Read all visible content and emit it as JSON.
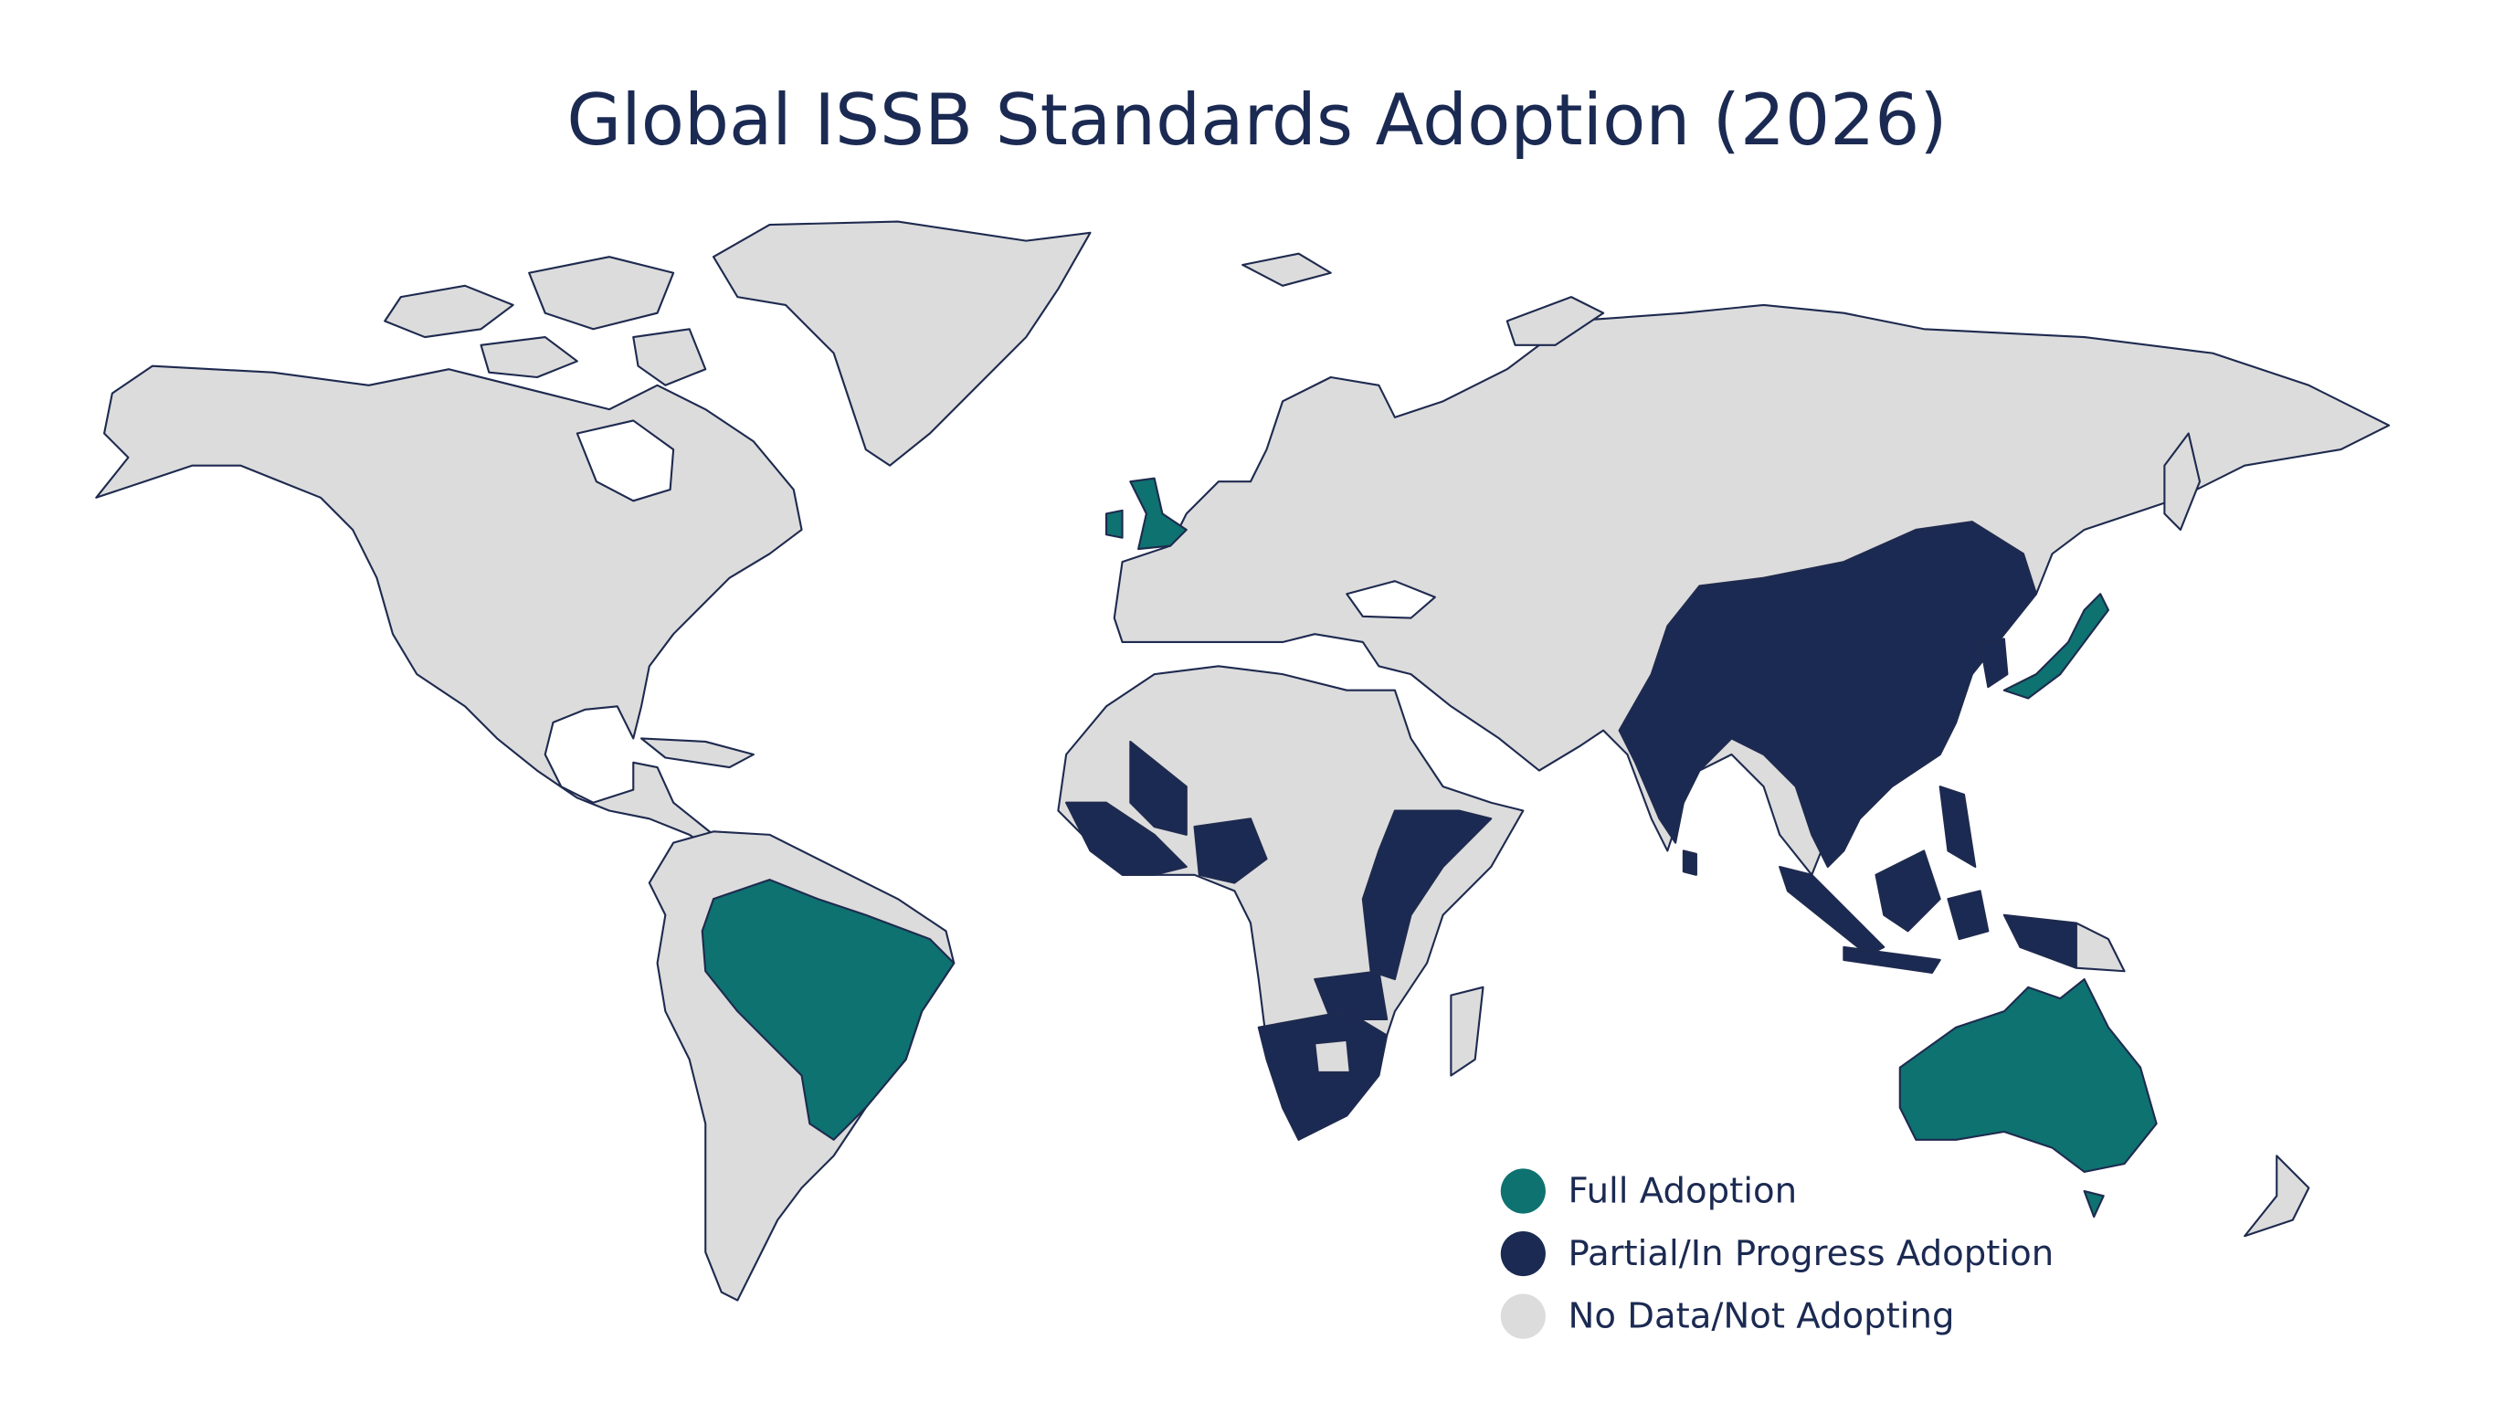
{
  "title": "Global ISSB Standards Adoption (2026)",
  "legend": {
    "items": [
      {
        "label": "Full Adoption",
        "color": "#0e7270"
      },
      {
        "label": "Partial/In Progress Adoption",
        "color": "#1b2a52"
      },
      {
        "label": "No Data/Not Adopting",
        "color": "#dcdcdc"
      }
    ]
  }
}
